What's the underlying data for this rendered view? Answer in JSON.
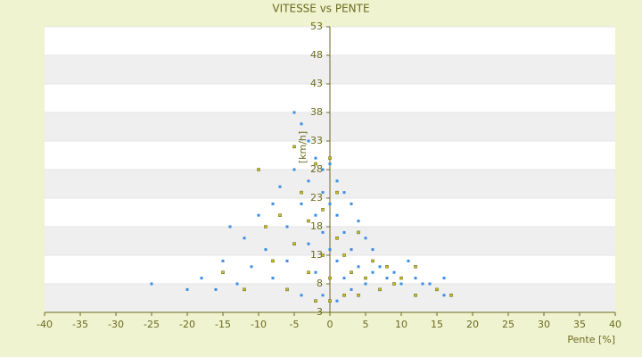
{
  "chart_data": {
    "type": "scatter",
    "title": "VITESSE vs PENTE",
    "x_label": "Pente [%]",
    "y_label": "[km/h]",
    "xlim": [
      -40,
      40
    ],
    "xticks": [
      -40,
      -35,
      -30,
      -25,
      -20,
      -15,
      -10,
      -5,
      0,
      5,
      10,
      15,
      20,
      25,
      30,
      35,
      40
    ],
    "ylim": [
      3,
      53
    ],
    "yticks": [
      3,
      8,
      13,
      18,
      23,
      28,
      33,
      38,
      43,
      48,
      53
    ],
    "grid": true,
    "series": [
      {
        "color": "#3a8ee6",
        "x": [
          -25,
          -20,
          -18,
          -16,
          -15,
          -14,
          -13,
          -12,
          -11,
          -10,
          -9,
          -8,
          -8,
          -7,
          -6,
          -6,
          -5,
          -5,
          -4,
          -4,
          -4,
          -3,
          -3,
          -3,
          -2,
          -2,
          -2,
          -1,
          -1,
          -1,
          -1,
          0,
          0,
          0,
          0,
          1,
          1,
          1,
          1,
          2,
          2,
          2,
          3,
          3,
          3,
          4,
          4,
          5,
          5,
          6,
          6,
          7,
          8,
          9,
          10,
          11,
          12,
          13,
          14,
          16,
          16
        ],
        "values": [
          8,
          7,
          9,
          7,
          12,
          18,
          8,
          16,
          11,
          20,
          14,
          22,
          9,
          25,
          18,
          12,
          28,
          38,
          36,
          22,
          6,
          33,
          26,
          15,
          30,
          20,
          10,
          28,
          24,
          17,
          6,
          29,
          22,
          14,
          5,
          26,
          20,
          12,
          5,
          24,
          17,
          9,
          22,
          14,
          7,
          19,
          11,
          16,
          8,
          14,
          10,
          11,
          9,
          10,
          8,
          12,
          9,
          8,
          8,
          6,
          9
        ]
      },
      {
        "color": "#c8c020",
        "x": [
          -15,
          -12,
          -10,
          -9,
          -8,
          -7,
          -6,
          -5,
          -5,
          -4,
          -3,
          -3,
          -2,
          -2,
          -1,
          -1,
          0,
          0,
          0,
          1,
          1,
          2,
          2,
          3,
          4,
          4,
          5,
          6,
          7,
          8,
          9,
          10,
          12,
          12,
          15,
          17
        ],
        "values": [
          10,
          7,
          28,
          18,
          12,
          20,
          7,
          32,
          15,
          24,
          10,
          19,
          29,
          5,
          13,
          21,
          30,
          9,
          5,
          16,
          24,
          6,
          13,
          10,
          17,
          6,
          9,
          12,
          7,
          11,
          8,
          9,
          11,
          6,
          7,
          6
        ]
      }
    ]
  }
}
